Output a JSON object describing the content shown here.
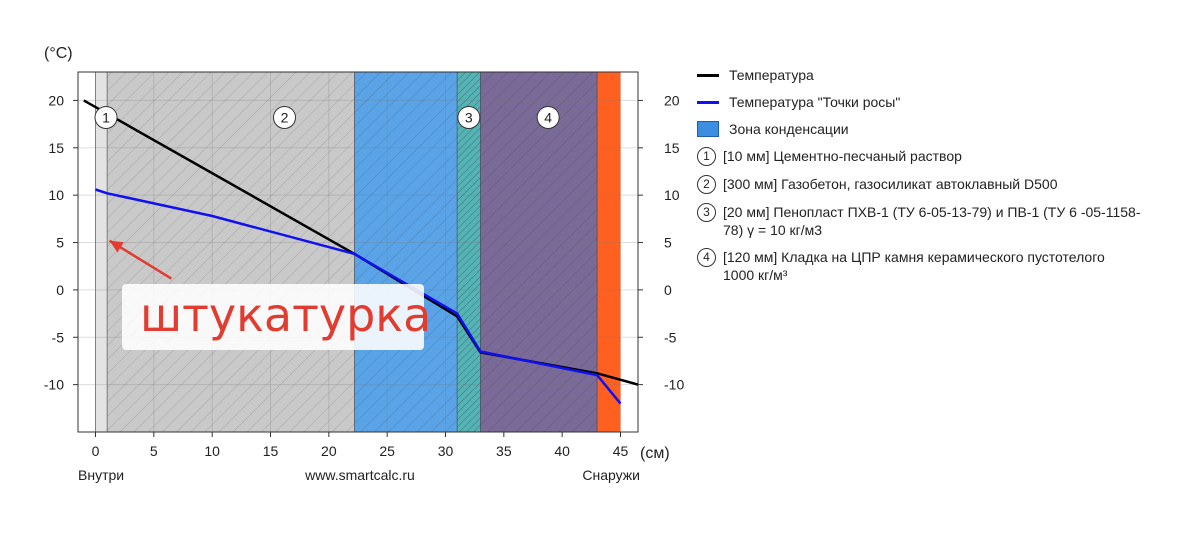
{
  "chart_data": {
    "type": "line",
    "y_unit": "(°C)",
    "x_unit": "(см)",
    "xlim": [
      -1.5,
      46.5
    ],
    "ylim": [
      -15,
      23
    ],
    "x_ticks": [
      0,
      5,
      10,
      15,
      20,
      25,
      30,
      35,
      40,
      45
    ],
    "y_ticks": [
      20,
      15,
      10,
      5,
      0,
      -5,
      -10
    ],
    "grid": true,
    "legend_position": "right",
    "x_label_left": "Внутри",
    "x_label_center": "www.smartcalc.ru",
    "x_label_right": "Снаружи",
    "layers": [
      {
        "id": "0",
        "from": 0,
        "to": 1,
        "color": "#e3e3e3"
      },
      {
        "id": "1",
        "label": "1",
        "from": 1,
        "to": 22.2,
        "color": "#c9c9c9"
      },
      {
        "id": "cond",
        "from": 22.2,
        "to": 31,
        "color": "#5aa3e6"
      },
      {
        "id": "2",
        "label": "3",
        "from": 31,
        "to": 33,
        "color": "#55b3b5"
      },
      {
        "id": "3",
        "label": "4",
        "from": 33,
        "to": 43,
        "color": "#7a6a98"
      },
      {
        "id": "4",
        "from": 43,
        "to": 45,
        "color": "#ff6020"
      }
    ],
    "layer_labels": [
      {
        "text": "1",
        "x": 0.9
      },
      {
        "text": "2",
        "x": 16.2
      },
      {
        "text": "3",
        "x": 32
      },
      {
        "text": "4",
        "x": 38.8
      }
    ],
    "series": [
      {
        "name": "Температура",
        "color": "#000000",
        "x": [
          -1,
          1,
          22.2,
          31,
          33,
          43,
          46.5
        ],
        "y": [
          20,
          18.6,
          3.8,
          -2.8,
          -6.6,
          -8.8,
          -10
        ]
      },
      {
        "name": "Температура \"Точки росы\"",
        "color": "#1010f0",
        "x": [
          0,
          1,
          10,
          22.2,
          31,
          33,
          43,
          45
        ],
        "y": [
          10.6,
          10.2,
          7.8,
          3.8,
          -2.5,
          -6.5,
          -9,
          -12
        ]
      }
    ]
  },
  "legend": {
    "temp": "Температура",
    "dew": "Температура \"Точки росы\"",
    "zone": "Зона конденсации",
    "items": [
      {
        "num": "1",
        "text": "[10 мм] Цементно-песчаный раствор"
      },
      {
        "num": "2",
        "text": "[300 мм] Газобетон, газосиликат автоклавный D500"
      },
      {
        "num": "3",
        "text": "[20 мм] Пенопласт ПХВ-1 (ТУ 6-05-13-79) и ПВ-1 (ТУ 6 -05-1158-78) γ = 10 кг/м3"
      },
      {
        "num": "4",
        "text": "[120 мм] Кладка на ЦПР камня керамического пустотелого 1000 кг/м³"
      }
    ],
    "colors": {
      "temp": "#000000",
      "dew": "#1010f0",
      "zone": "#3c8ee0"
    }
  },
  "annotation": {
    "text": "штукатурка",
    "color": "#e23b30",
    "arrow_from": [
      6.5,
      1.2
    ],
    "arrow_to": [
      1.2,
      5.2
    ]
  }
}
